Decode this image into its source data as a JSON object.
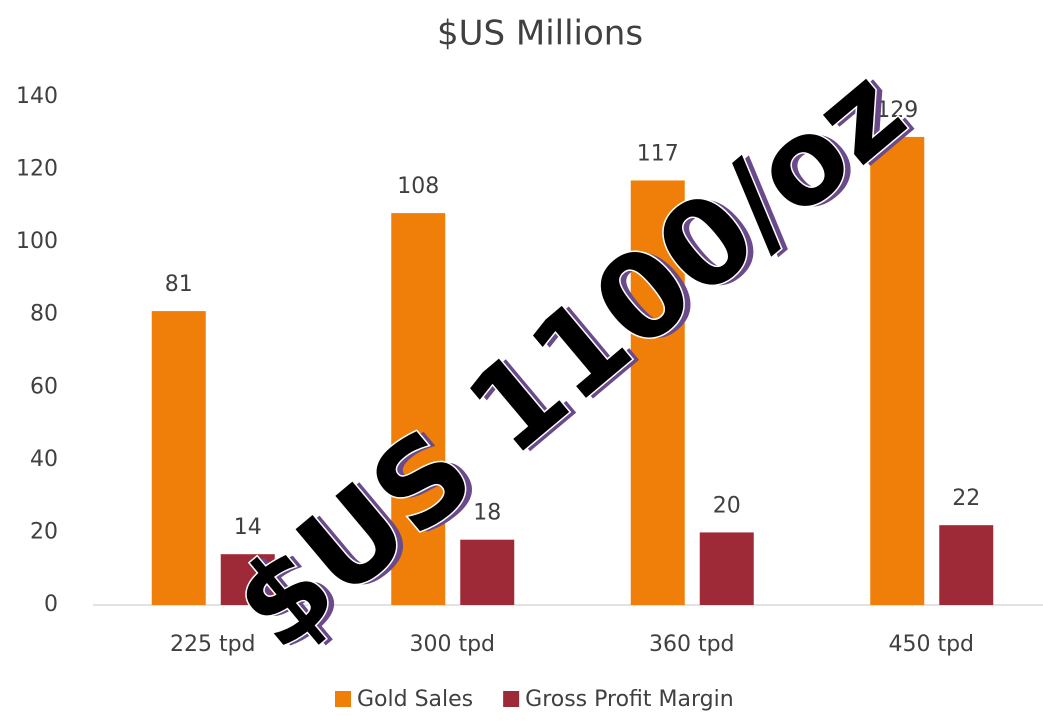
{
  "chart_data": {
    "type": "bar",
    "title": "$US Millions",
    "categories": [
      "225 tpd",
      "300 tpd",
      "360 tpd",
      "450 tpd"
    ],
    "series": [
      {
        "name": "Gold Sales",
        "color": "#f07f09",
        "values": [
          81,
          108,
          117,
          129
        ]
      },
      {
        "name": "Gross Profit Margin",
        "color": "#9e2a37",
        "values": [
          14,
          18,
          20,
          22
        ]
      }
    ],
    "ylim": [
      0,
      140
    ],
    "yticks": [
      0,
      20,
      40,
      60,
      80,
      100,
      120,
      140
    ],
    "grid": false,
    "legend": "bottom",
    "annotation": "$US 1100/oz"
  }
}
